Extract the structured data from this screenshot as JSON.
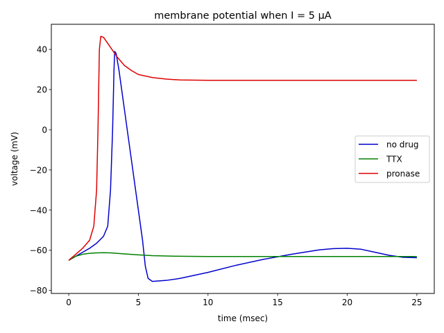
{
  "chart_data": {
    "type": "line",
    "title": "membrane potential when I = 5 µA",
    "xlabel": "time (msec)",
    "ylabel": "voltage (mV)",
    "xlim": [
      -1.25,
      26.25
    ],
    "ylim": [
      -81.5,
      52.5
    ],
    "xticks": [
      0,
      5,
      10,
      15,
      20,
      25
    ],
    "yticks": [
      -80,
      -60,
      -40,
      -20,
      0,
      20,
      40
    ],
    "legend_position": "center-right",
    "series": [
      {
        "name": "no drug",
        "color": "#0000cc",
        "points": [
          [
            0,
            -65
          ],
          [
            0.5,
            -63
          ],
          [
            1,
            -61
          ],
          [
            1.5,
            -59
          ],
          [
            2,
            -56.5
          ],
          [
            2.5,
            -53
          ],
          [
            2.8,
            -48
          ],
          [
            3.0,
            -30
          ],
          [
            3.15,
            0
          ],
          [
            3.25,
            30
          ],
          [
            3.3,
            39
          ],
          [
            3.4,
            38
          ],
          [
            3.6,
            30
          ],
          [
            4.0,
            10
          ],
          [
            4.5,
            -15
          ],
          [
            5.0,
            -40
          ],
          [
            5.3,
            -55
          ],
          [
            5.5,
            -68
          ],
          [
            5.7,
            -74
          ],
          [
            6.0,
            -75.5
          ],
          [
            7,
            -75
          ],
          [
            8,
            -74
          ],
          [
            10,
            -71
          ],
          [
            12,
            -67.5
          ],
          [
            14,
            -64.5
          ],
          [
            16,
            -62
          ],
          [
            18,
            -59.8
          ],
          [
            19,
            -59.2
          ],
          [
            20,
            -59
          ],
          [
            21,
            -59.5
          ],
          [
            22,
            -61
          ],
          [
            23,
            -62.5
          ],
          [
            24,
            -63.5
          ],
          [
            25,
            -63.7
          ]
        ]
      },
      {
        "name": "TTX",
        "color": "#008000",
        "points": [
          [
            0,
            -65
          ],
          [
            0.5,
            -63
          ],
          [
            1,
            -62
          ],
          [
            1.5,
            -61.5
          ],
          [
            2,
            -61.3
          ],
          [
            2.5,
            -61.2
          ],
          [
            3,
            -61.3
          ],
          [
            4,
            -61.8
          ],
          [
            5,
            -62.3
          ],
          [
            6,
            -62.7
          ],
          [
            8,
            -63
          ],
          [
            10,
            -63.1
          ],
          [
            15,
            -63.1
          ],
          [
            20,
            -63.1
          ],
          [
            25,
            -63.1
          ]
        ]
      },
      {
        "name": "pronase",
        "color": "#dd0000",
        "points": [
          [
            0,
            -65
          ],
          [
            0.5,
            -62
          ],
          [
            1,
            -59
          ],
          [
            1.5,
            -55
          ],
          [
            1.8,
            -48
          ],
          [
            2.0,
            -30
          ],
          [
            2.1,
            0
          ],
          [
            2.2,
            40
          ],
          [
            2.3,
            46.5
          ],
          [
            2.5,
            46
          ],
          [
            3.0,
            41
          ],
          [
            3.5,
            36
          ],
          [
            4,
            32
          ],
          [
            4.5,
            29.5
          ],
          [
            5,
            27.5
          ],
          [
            6,
            26
          ],
          [
            7,
            25.2
          ],
          [
            8,
            24.8
          ],
          [
            10,
            24.6
          ],
          [
            15,
            24.6
          ],
          [
            20,
            24.6
          ],
          [
            25,
            24.6
          ]
        ]
      }
    ]
  }
}
